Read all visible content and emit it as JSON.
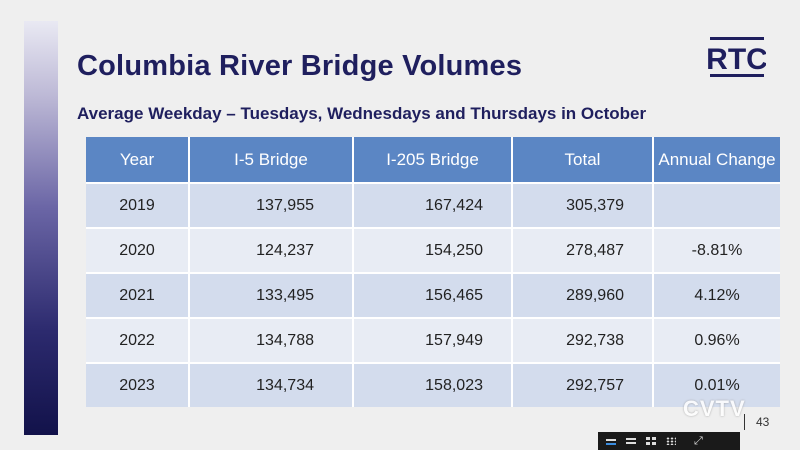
{
  "slide": {
    "title": "Columbia River Bridge Volumes",
    "subtitle": "Average Weekday – Tuesdays, Wednesdays and Thursdays in October",
    "logo_text": "RTC",
    "page_number": "43",
    "watermark": "CVTV"
  },
  "table": {
    "headers": [
      "Year",
      "I-5 Bridge",
      "I-205 Bridge",
      "Total",
      "Annual Change"
    ],
    "rows": [
      {
        "year": "2019",
        "i5": "137,955",
        "i205": "167,424",
        "total": "305,379",
        "change": ""
      },
      {
        "year": "2020",
        "i5": "124,237",
        "i205": "154,250",
        "total": "278,487",
        "change": "-8.81%"
      },
      {
        "year": "2021",
        "i5": "133,495",
        "i205": "156,465",
        "total": "289,960",
        "change": "4.12%"
      },
      {
        "year": "2022",
        "i5": "134,788",
        "i205": "157,949",
        "total": "292,738",
        "change": "0.96%"
      },
      {
        "year": "2023",
        "i5": "134,734",
        "i205": "158,023",
        "total": "292,757",
        "change": "0.01%"
      }
    ]
  },
  "player": {
    "icons": [
      "line-view-icon",
      "list-view-icon",
      "grid-view-icon",
      "grid-nine-view-icon",
      "expand-icon"
    ],
    "active_icon": "line-view-icon"
  },
  "colors": {
    "title": "#1f1f5e",
    "header_bg": "#5b86c4",
    "row_odd": "#d3dced",
    "row_even": "#e8ecf4"
  }
}
